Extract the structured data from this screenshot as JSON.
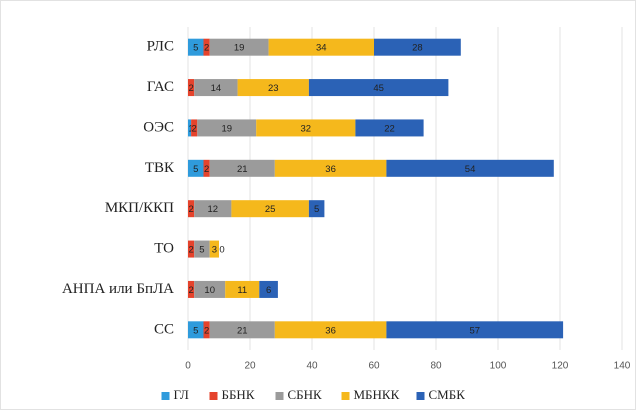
{
  "chart_data": {
    "type": "stacked_bar_horizontal",
    "categories": [
      "РЛС",
      "ГАС",
      "ОЭС",
      "ТВК",
      "МКП/ККП",
      "ТО",
      "АНПА или БпЛА",
      "СС"
    ],
    "series": [
      {
        "name": "ГЛ",
        "color": "#2f9bdc",
        "values": [
          5,
          null,
          1,
          5,
          null,
          null,
          null,
          5
        ]
      },
      {
        "name": "ББНК",
        "color": "#e5432c",
        "values": [
          2,
          2,
          2,
          2,
          2,
          2,
          2,
          2
        ]
      },
      {
        "name": "СБНК",
        "color": "#9b9b9b",
        "values": [
          19,
          14,
          19,
          21,
          12,
          5,
          10,
          21
        ]
      },
      {
        "name": "МБНКК",
        "color": "#f5b81c",
        "values": [
          34,
          23,
          32,
          36,
          25,
          3,
          11,
          36
        ]
      },
      {
        "name": "СМБК",
        "color": "#2b62b6",
        "values": [
          28,
          45,
          22,
          54,
          5,
          0,
          6,
          57
        ]
      }
    ],
    "xlim": [
      0,
      140
    ],
    "xticks": [
      0,
      20,
      40,
      60,
      80,
      100,
      120,
      140
    ],
    "grid": true,
    "legend": "bottom"
  }
}
